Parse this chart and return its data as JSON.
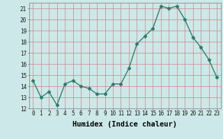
{
  "x": [
    0,
    1,
    2,
    3,
    4,
    5,
    6,
    7,
    8,
    9,
    10,
    11,
    12,
    13,
    14,
    15,
    16,
    17,
    18,
    19,
    20,
    21,
    22,
    23
  ],
  "y": [
    14.5,
    13.0,
    13.5,
    12.3,
    14.2,
    14.5,
    14.0,
    13.8,
    13.3,
    13.3,
    14.2,
    14.2,
    15.6,
    17.8,
    18.5,
    19.2,
    21.2,
    21.0,
    21.2,
    20.0,
    18.4,
    17.5,
    16.4,
    14.8
  ],
  "line_color": "#2e7d6e",
  "marker": "D",
  "markersize": 2.2,
  "linewidth": 1.0,
  "bg_color": "#cce8e8",
  "grid_color": "#d08080",
  "xlabel": "Humidex (Indice chaleur)",
  "ylim": [
    12,
    21.5
  ],
  "xlim": [
    -0.5,
    23.5
  ],
  "yticks": [
    12,
    13,
    14,
    15,
    16,
    17,
    18,
    19,
    20,
    21
  ],
  "xticks": [
    0,
    1,
    2,
    3,
    4,
    5,
    6,
    7,
    8,
    9,
    10,
    11,
    12,
    13,
    14,
    15,
    16,
    17,
    18,
    19,
    20,
    21,
    22,
    23
  ],
  "tick_labelsize": 5.5,
  "xlabel_fontsize": 7.5,
  "xlabel_fontweight": "bold"
}
